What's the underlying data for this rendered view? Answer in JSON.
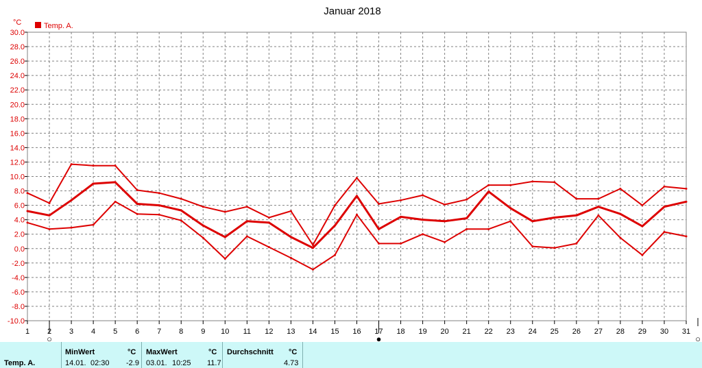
{
  "chart_data": {
    "type": "line",
    "title": "Januar 2018",
    "ylabel": "°C",
    "legend": "Temp. A.",
    "legend_placement": "top-left",
    "grid": true,
    "xlim": [
      1,
      31
    ],
    "ylim": [
      -10,
      30
    ],
    "x": [
      1,
      2,
      3,
      4,
      5,
      6,
      7,
      8,
      9,
      10,
      11,
      12,
      13,
      14,
      15,
      16,
      17,
      18,
      19,
      20,
      21,
      22,
      23,
      24,
      25,
      26,
      27,
      28,
      29,
      30,
      31
    ],
    "x_ticks": [
      "1",
      "2",
      "3",
      "4",
      "5",
      "6",
      "7",
      "8",
      "9",
      "10",
      "11",
      "12",
      "13",
      "14",
      "15",
      "16",
      "17",
      "18",
      "19",
      "20",
      "21",
      "22",
      "23",
      "24",
      "25",
      "26",
      "27",
      "28",
      "29",
      "30",
      "31"
    ],
    "y_ticks": [
      "30.0",
      "28.0",
      "26.0",
      "24.0",
      "22.0",
      "20.0",
      "18.0",
      "16.0",
      "14.0",
      "12.0",
      "10.0",
      "8.0",
      "6.0",
      "4.0",
      "2.0",
      "0.0",
      "-2.0",
      "-4.0",
      "-6.0",
      "-8.0",
      "-10.0"
    ],
    "series": [
      {
        "role": "max",
        "values": [
          7.7,
          6.3,
          11.7,
          11.5,
          11.5,
          8.1,
          7.7,
          6.9,
          5.8,
          5.1,
          5.8,
          4.3,
          5.2,
          0.5,
          6.0,
          9.8,
          6.2,
          6.7,
          7.4,
          6.1,
          6.8,
          8.8,
          8.8,
          9.3,
          9.2,
          6.9,
          6.9,
          8.3,
          6.0,
          8.6,
          8.3
        ]
      },
      {
        "role": "avg",
        "values": [
          5.2,
          4.6,
          6.7,
          9.0,
          9.2,
          6.2,
          6.0,
          5.3,
          3.2,
          1.6,
          3.8,
          3.6,
          1.6,
          0.1,
          3.2,
          7.3,
          2.7,
          4.4,
          4.0,
          3.8,
          4.2,
          7.9,
          5.6,
          3.8,
          4.3,
          4.6,
          5.8,
          4.8,
          3.1,
          5.8,
          6.5
        ]
      },
      {
        "role": "min",
        "values": [
          3.6,
          2.7,
          2.9,
          3.3,
          6.5,
          4.8,
          4.7,
          3.9,
          1.5,
          -1.4,
          1.7,
          0.2,
          -1.3,
          -2.9,
          -0.9,
          4.7,
          0.7,
          0.7,
          2.0,
          0.9,
          2.7,
          2.7,
          3.8,
          0.3,
          0.1,
          0.7,
          4.6,
          1.5,
          -0.9,
          2.3,
          1.7
        ]
      }
    ],
    "moon_phases": [
      {
        "day": 2,
        "symbol": "○"
      },
      {
        "day": 17,
        "symbol": "●"
      },
      {
        "day": 31,
        "symbol": "○"
      }
    ],
    "colors": {
      "line": "#dd0000",
      "axis_text": "#dd0000",
      "grid": "#808080",
      "footer_bg": "#cdf8f8"
    }
  },
  "footer": {
    "row_label": "Temp. A.",
    "min_label": "MinWert",
    "min_unit": "°C",
    "min_date": "14.01.",
    "min_time": "02:30",
    "min_value": "-2.9",
    "max_label": "MaxWert",
    "max_unit": "°C",
    "max_date": "03.01.",
    "max_time": "10:25",
    "max_value": "11.7",
    "avg_label": "Durchschnitt",
    "avg_unit": "°C",
    "avg_value": "4.73"
  }
}
